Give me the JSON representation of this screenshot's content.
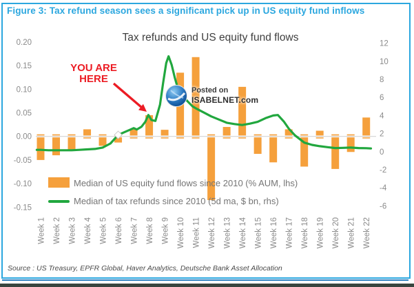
{
  "figure_caption": "Figure 3: Tax refund season sees a significant pick up in US equity fund inflows",
  "source": "Source : US Treasury, EPFR Global, Haver Analytics, Deutsche Bank Asset Allocation",
  "annotation": {
    "line1": "YOU ARE",
    "line2": "HERE"
  },
  "watermark": {
    "line1": "Posted on",
    "line2": "ISABELNET.com"
  },
  "colors": {
    "accent_blue": "#2BA7DF",
    "bar_orange": "#F5A03C",
    "line_green": "#21A73E",
    "annotation_red": "#EC1C24",
    "axis_text": "#8a8a8a"
  },
  "chart_data": {
    "type": "bar",
    "subtype": "bar+line combo, dual axis",
    "title": "Tax refunds and US equity fund flows",
    "categories": [
      "Week 1",
      "Week 2",
      "Week 3",
      "Week 4",
      "Week 5",
      "Week 6",
      "Week 7",
      "Week 8",
      "Week 9",
      "Week 10",
      "Week 11",
      "Week 12",
      "Week 13",
      "Week 14",
      "Week 15",
      "Week 16",
      "Week 17",
      "Week 18",
      "Week 19",
      "Week 20",
      "Week 21",
      "Week 22"
    ],
    "series": [
      {
        "name": "Median of US equity fund flows since 2010 (% AUM, lhs)",
        "type": "bar",
        "axis": "left",
        "color": "#F5A03C",
        "values": [
          -0.05,
          -0.04,
          -0.028,
          0.015,
          -0.02,
          -0.013,
          0.015,
          0.045,
          0.014,
          0.135,
          0.168,
          -0.135,
          0.02,
          0.105,
          -0.037,
          -0.055,
          0.015,
          -0.064,
          0.012,
          -0.069,
          -0.033,
          0.04
        ]
      },
      {
        "name": "Median of tax refunds since 2010 (5d ma, $ bn, rhs)",
        "type": "line",
        "axis": "right",
        "color": "#21A73E",
        "values": [
          0.2,
          0.15,
          0.15,
          0.25,
          0.45,
          1.85,
          2.6,
          3.5,
          9.8,
          6.4,
          4.8,
          3.9,
          3.2,
          2.95,
          3.3,
          4.0,
          2.55,
          1.0,
          0.6,
          0.4,
          0.45,
          0.38
        ],
        "path_points": [
          [
            0.75,
            0.2
          ],
          [
            1,
            0.2
          ],
          [
            1.5,
            0.15
          ],
          [
            2,
            0.15
          ],
          [
            2.5,
            0.15
          ],
          [
            3,
            0.15
          ],
          [
            3.5,
            0.2
          ],
          [
            4,
            0.25
          ],
          [
            4.5,
            0.3
          ],
          [
            5,
            0.45
          ],
          [
            5.5,
            0.9
          ],
          [
            6,
            1.85
          ],
          [
            6.4,
            2.15
          ],
          [
            6.8,
            2.45
          ],
          [
            7,
            2.6
          ],
          [
            7.2,
            2.45
          ],
          [
            7.5,
            2.75
          ],
          [
            7.75,
            3.3
          ],
          [
            7.95,
            4.05
          ],
          [
            8.15,
            3.5
          ],
          [
            8.4,
            3.4
          ],
          [
            8.7,
            5.2
          ],
          [
            8.9,
            7.6
          ],
          [
            9.1,
            9.8
          ],
          [
            9.25,
            10.55
          ],
          [
            9.45,
            9.6
          ],
          [
            9.65,
            8.2
          ],
          [
            9.85,
            7.0
          ],
          [
            10,
            6.4
          ],
          [
            10.4,
            5.7
          ],
          [
            10.8,
            5.0
          ],
          [
            11,
            4.8
          ],
          [
            11.5,
            4.35
          ],
          [
            12,
            3.9
          ],
          [
            12.5,
            3.55
          ],
          [
            13,
            3.2
          ],
          [
            13.5,
            3.05
          ],
          [
            14,
            2.95
          ],
          [
            14.5,
            3.1
          ],
          [
            15,
            3.3
          ],
          [
            15.5,
            3.7
          ],
          [
            16,
            4.0
          ],
          [
            16.3,
            4.05
          ],
          [
            16.7,
            3.3
          ],
          [
            17,
            2.55
          ],
          [
            17.4,
            1.8
          ],
          [
            18,
            1.0
          ],
          [
            18.5,
            0.75
          ],
          [
            19,
            0.6
          ],
          [
            19.5,
            0.5
          ],
          [
            20,
            0.4
          ],
          [
            20.5,
            0.42
          ],
          [
            21,
            0.45
          ],
          [
            21.5,
            0.4
          ],
          [
            22,
            0.38
          ],
          [
            22.3,
            0.35
          ]
        ],
        "marker_point": [
          6,
          1.85
        ]
      }
    ],
    "left_axis": {
      "label": "% AUM",
      "ticks": [
        "0.20",
        "0.15",
        "0.10",
        "0.05",
        "0.00",
        "-0.05",
        "-0.10",
        "-0.15"
      ],
      "range": [
        -0.175,
        0.225
      ]
    },
    "right_axis": {
      "label": "$ bn",
      "ticks": [
        "12",
        "10",
        "8",
        "6",
        "4",
        "2",
        "0",
        "-2",
        "-4",
        "-6"
      ],
      "range": [
        -7,
        13
      ]
    },
    "grid": "zero line only",
    "legend_position": "bottom-left inside plot"
  }
}
